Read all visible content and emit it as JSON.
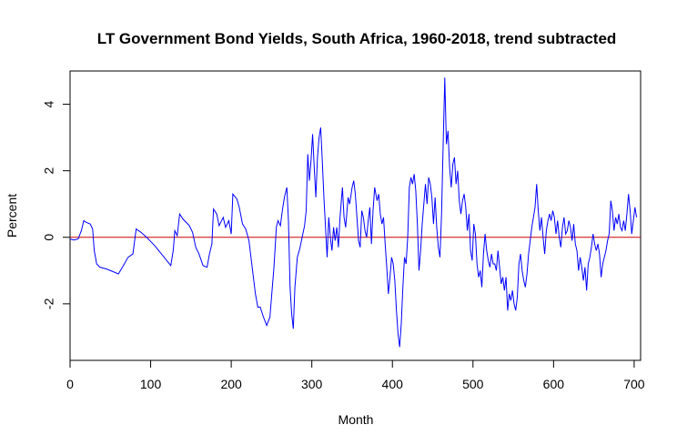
{
  "chart_data": {
    "type": "line",
    "title": "LT Government Bond Yields, South Africa, 1960-2018, trend subtracted",
    "xlabel": "Month",
    "ylabel": "Percent",
    "xlim": [
      0,
      708
    ],
    "ylim": [
      -3.7,
      5.0
    ],
    "x_ticks": [
      0,
      100,
      200,
      300,
      400,
      500,
      600,
      700
    ],
    "y_ticks": [
      -2,
      0,
      2,
      4
    ],
    "grid": false,
    "reference_line": {
      "y": 0,
      "color": "#cc0000"
    },
    "series": [
      {
        "color": "#0000ff",
        "points": [
          [
            0,
            -0.05
          ],
          [
            5,
            -0.08
          ],
          [
            10,
            -0.05
          ],
          [
            14,
            0.2
          ],
          [
            17,
            0.5
          ],
          [
            20,
            0.45
          ],
          [
            25,
            0.4
          ],
          [
            28,
            0.25
          ],
          [
            30,
            -0.4
          ],
          [
            33,
            -0.8
          ],
          [
            37,
            -0.9
          ],
          [
            45,
            -0.95
          ],
          [
            55,
            -1.05
          ],
          [
            60,
            -1.1
          ],
          [
            65,
            -0.9
          ],
          [
            72,
            -0.6
          ],
          [
            78,
            -0.5
          ],
          [
            82,
            0.25
          ],
          [
            88,
            0.15
          ],
          [
            95,
            0.0
          ],
          [
            105,
            -0.25
          ],
          [
            115,
            -0.55
          ],
          [
            125,
            -0.85
          ],
          [
            128,
            -0.4
          ],
          [
            130,
            0.2
          ],
          [
            133,
            0.05
          ],
          [
            136,
            0.7
          ],
          [
            140,
            0.55
          ],
          [
            148,
            0.35
          ],
          [
            152,
            0.15
          ],
          [
            156,
            -0.3
          ],
          [
            160,
            -0.5
          ],
          [
            165,
            -0.85
          ],
          [
            170,
            -0.9
          ],
          [
            173,
            -0.5
          ],
          [
            176,
            -0.2
          ],
          [
            178,
            0.85
          ],
          [
            182,
            0.7
          ],
          [
            185,
            0.35
          ],
          [
            190,
            0.6
          ],
          [
            193,
            0.3
          ],
          [
            197,
            0.5
          ],
          [
            200,
            0.1
          ],
          [
            202,
            1.3
          ],
          [
            207,
            1.15
          ],
          [
            210,
            0.9
          ],
          [
            214,
            0.4
          ],
          [
            218,
            0.25
          ],
          [
            222,
            -0.1
          ],
          [
            226,
            -0.9
          ],
          [
            230,
            -1.7
          ],
          [
            233,
            -2.1
          ],
          [
            236,
            -2.1
          ],
          [
            240,
            -2.4
          ],
          [
            244,
            -2.65
          ],
          [
            248,
            -2.4
          ],
          [
            250,
            -1.8
          ],
          [
            253,
            -0.9
          ],
          [
            256,
            0.3
          ],
          [
            258,
            0.5
          ],
          [
            261,
            0.35
          ],
          [
            264,
            0.9
          ],
          [
            266,
            1.2
          ],
          [
            269,
            1.5
          ],
          [
            271,
            0.5
          ],
          [
            273,
            -1.5
          ],
          [
            275,
            -2.3
          ],
          [
            277,
            -2.75
          ],
          [
            279,
            -1.5
          ],
          [
            282,
            -0.6
          ],
          [
            285,
            -0.35
          ],
          [
            288,
            0.0
          ],
          [
            291,
            0.35
          ],
          [
            293,
            0.8
          ],
          [
            295,
            2.5
          ],
          [
            297,
            1.7
          ],
          [
            299,
            2.3
          ],
          [
            301,
            3.1
          ],
          [
            303,
            2.1
          ],
          [
            305,
            1.2
          ],
          [
            307,
            2.4
          ],
          [
            309,
            3.0
          ],
          [
            311,
            3.3
          ],
          [
            313,
            2.3
          ],
          [
            315,
            1.2
          ],
          [
            317,
            0.3
          ],
          [
            319,
            -0.6
          ],
          [
            321,
            0.6
          ],
          [
            323,
            0.0
          ],
          [
            325,
            -0.4
          ],
          [
            327,
            0.3
          ],
          [
            329,
            -0.1
          ],
          [
            331,
            0.3
          ],
          [
            333,
            -0.3
          ],
          [
            335,
            0.6
          ],
          [
            338,
            1.5
          ],
          [
            340,
            0.6
          ],
          [
            342,
            0.3
          ],
          [
            345,
            1.2
          ],
          [
            347,
            1.0
          ],
          [
            350,
            1.5
          ],
          [
            352,
            1.7
          ],
          [
            354,
            1.3
          ],
          [
            356,
            0.6
          ],
          [
            358,
            -0.1
          ],
          [
            360,
            -0.3
          ],
          [
            362,
            0.8
          ],
          [
            364,
            0.6
          ],
          [
            366,
            0.2
          ],
          [
            368,
            0.0
          ],
          [
            370,
            0.5
          ],
          [
            372,
            0.9
          ],
          [
            374,
            -0.2
          ],
          [
            376,
            0.8
          ],
          [
            378,
            1.5
          ],
          [
            381,
            1.1
          ],
          [
            383,
            1.3
          ],
          [
            385,
            0.7
          ],
          [
            387,
            0.4
          ],
          [
            389,
            0.6
          ],
          [
            391,
            -0.2
          ],
          [
            393,
            -0.9
          ],
          [
            395,
            -1.7
          ],
          [
            397,
            -1.2
          ],
          [
            399,
            -0.6
          ],
          [
            401,
            -0.8
          ],
          [
            403,
            -1.3
          ],
          [
            405,
            -2.2
          ],
          [
            407,
            -2.9
          ],
          [
            409,
            -3.3
          ],
          [
            411,
            -2.6
          ],
          [
            413,
            -1.5
          ],
          [
            415,
            -0.6
          ],
          [
            417,
            -0.8
          ],
          [
            419,
            0.0
          ],
          [
            421,
            1.5
          ],
          [
            423,
            1.8
          ],
          [
            425,
            1.6
          ],
          [
            427,
            1.9
          ],
          [
            429,
            1.4
          ],
          [
            431,
            0.4
          ],
          [
            433,
            -1.0
          ],
          [
            435,
            -0.4
          ],
          [
            437,
            0.4
          ],
          [
            439,
            1.0
          ],
          [
            441,
            1.6
          ],
          [
            443,
            1.0
          ],
          [
            445,
            1.8
          ],
          [
            447,
            1.6
          ],
          [
            449,
            1.2
          ],
          [
            451,
            0.4
          ],
          [
            453,
            1.2
          ],
          [
            455,
            0.3
          ],
          [
            457,
            -0.3
          ],
          [
            459,
            -0.6
          ],
          [
            461,
            0.7
          ],
          [
            463,
            2.8
          ],
          [
            465,
            4.8
          ],
          [
            467,
            2.8
          ],
          [
            469,
            3.2
          ],
          [
            471,
            2.1
          ],
          [
            473,
            1.5
          ],
          [
            475,
            2.2
          ],
          [
            477,
            2.4
          ],
          [
            479,
            1.6
          ],
          [
            481,
            2.0
          ],
          [
            483,
            1.1
          ],
          [
            485,
            0.7
          ],
          [
            487,
            1.1
          ],
          [
            489,
            1.3
          ],
          [
            491,
            0.9
          ],
          [
            493,
            0.2
          ],
          [
            495,
            0.7
          ],
          [
            497,
            -0.4
          ],
          [
            499,
            -0.7
          ],
          [
            501,
            0.4
          ],
          [
            503,
            0.1
          ],
          [
            505,
            -0.8
          ],
          [
            507,
            -1.2
          ],
          [
            509,
            -1.0
          ],
          [
            511,
            -1.5
          ],
          [
            513,
            -0.5
          ],
          [
            515,
            0.1
          ],
          [
            517,
            -0.4
          ],
          [
            519,
            -0.7
          ],
          [
            521,
            -0.9
          ],
          [
            523,
            -0.5
          ],
          [
            525,
            -0.8
          ],
          [
            527,
            -0.8
          ],
          [
            529,
            -1.0
          ],
          [
            531,
            -0.4
          ],
          [
            533,
            -0.9
          ],
          [
            535,
            -1.4
          ],
          [
            537,
            -1.2
          ],
          [
            539,
            -1.6
          ],
          [
            541,
            -1.2
          ],
          [
            543,
            -2.2
          ],
          [
            545,
            -1.7
          ],
          [
            547,
            -1.9
          ],
          [
            549,
            -1.6
          ],
          [
            551,
            -2.0
          ],
          [
            553,
            -2.2
          ],
          [
            555,
            -1.8
          ],
          [
            557,
            -0.8
          ],
          [
            559,
            -0.5
          ],
          [
            561,
            -1.0
          ],
          [
            563,
            -1.3
          ],
          [
            565,
            -1.5
          ],
          [
            567,
            -1.1
          ],
          [
            569,
            -0.5
          ],
          [
            571,
            -0.1
          ],
          [
            573,
            0.3
          ],
          [
            575,
            0.6
          ],
          [
            577,
            0.9
          ],
          [
            579,
            1.6
          ],
          [
            581,
            0.8
          ],
          [
            583,
            0.2
          ],
          [
            585,
            0.6
          ],
          [
            587,
            0.0
          ],
          [
            589,
            -0.5
          ],
          [
            591,
            0.2
          ],
          [
            593,
            0.5
          ],
          [
            595,
            0.7
          ],
          [
            597,
            0.5
          ],
          [
            599,
            0.8
          ],
          [
            601,
            0.6
          ],
          [
            603,
            0.1
          ],
          [
            605,
            0.5
          ],
          [
            607,
            0.0
          ],
          [
            609,
            -0.3
          ],
          [
            611,
            0.3
          ],
          [
            613,
            0.6
          ],
          [
            615,
            0.1
          ],
          [
            617,
            0.2
          ],
          [
            619,
            0.5
          ],
          [
            621,
            0.3
          ],
          [
            623,
            -0.1
          ],
          [
            625,
            0.4
          ],
          [
            627,
            -0.2
          ],
          [
            629,
            -0.4
          ],
          [
            631,
            -1.0
          ],
          [
            633,
            -0.6
          ],
          [
            635,
            -0.9
          ],
          [
            637,
            -1.3
          ],
          [
            639,
            -0.9
          ],
          [
            641,
            -1.6
          ],
          [
            643,
            -0.8
          ],
          [
            645,
            -0.6
          ],
          [
            647,
            -0.3
          ],
          [
            649,
            0.1
          ],
          [
            651,
            -0.2
          ],
          [
            653,
            -0.4
          ],
          [
            655,
            -0.2
          ],
          [
            657,
            -0.5
          ],
          [
            659,
            -1.2
          ],
          [
            661,
            -0.8
          ],
          [
            663,
            -0.6
          ],
          [
            665,
            -0.4
          ],
          [
            667,
            -0.1
          ],
          [
            669,
            0.1
          ],
          [
            671,
            1.1
          ],
          [
            673,
            0.8
          ],
          [
            675,
            0.2
          ],
          [
            677,
            0.6
          ],
          [
            679,
            0.4
          ],
          [
            681,
            0.7
          ],
          [
            683,
            0.3
          ],
          [
            685,
            0.2
          ],
          [
            687,
            0.5
          ],
          [
            689,
            0.2
          ],
          [
            691,
            0.7
          ],
          [
            693,
            1.3
          ],
          [
            695,
            0.8
          ],
          [
            697,
            0.1
          ],
          [
            699,
            0.5
          ],
          [
            701,
            0.9
          ],
          [
            703,
            0.6
          ]
        ]
      }
    ]
  }
}
